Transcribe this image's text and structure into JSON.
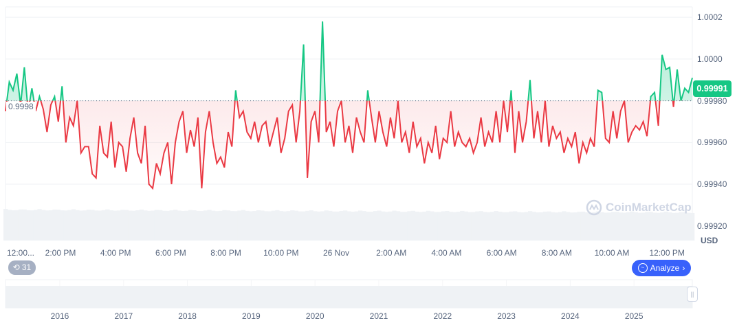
{
  "chart_data": {
    "type": "line",
    "currency_label": "USD",
    "y_ticks": [
      "1.0002",
      "1.0000",
      "0.99980",
      "0.99960",
      "0.99940",
      "0.99920"
    ],
    "y_tick_values": [
      1.0002,
      1.0,
      0.9998,
      0.9996,
      0.9994,
      0.9992
    ],
    "ylim": [
      0.99913,
      1.00025
    ],
    "baseline": 0.9998,
    "baseline_label": "0.9998",
    "current_price": "0.99991",
    "x_ticks": [
      "12:00...",
      "2:00 PM",
      "4:00 PM",
      "6:00 PM",
      "8:00 PM",
      "10:00 PM",
      "26 Nov",
      "2:00 AM",
      "4:00 AM",
      "6:00 AM",
      "8:00 AM",
      "10:00 AM",
      "12:00 PM"
    ],
    "navigator_years": [
      "2016",
      "2017",
      "2018",
      "2019",
      "2020",
      "2021",
      "2022",
      "2023",
      "2024",
      "2025"
    ],
    "grid": true,
    "colors": {
      "up": "#16c784",
      "down": "#ea3943",
      "accent": "#3861fb"
    },
    "values": [
      0.99975,
      0.99989,
      0.99985,
      0.99993,
      0.99978,
      0.99996,
      0.99975,
      0.99986,
      0.99975,
      0.99982,
      0.99976,
      0.99965,
      0.99978,
      0.99982,
      0.9997,
      0.99987,
      0.9996,
      0.99972,
      0.99968,
      0.9998,
      0.99955,
      0.99958,
      0.99958,
      0.99945,
      0.99943,
      0.99968,
      0.99955,
      0.99953,
      0.9997,
      0.99948,
      0.9996,
      0.99958,
      0.99946,
      0.99962,
      0.99972,
      0.99955,
      0.9995,
      0.99968,
      0.9994,
      0.99938,
      0.9995,
      0.99945,
      0.99955,
      0.9996,
      0.9994,
      0.9996,
      0.9997,
      0.99975,
      0.99955,
      0.99966,
      0.99958,
      0.99972,
      0.99938,
      0.99965,
      0.99975,
      0.9996,
      0.9995,
      0.99953,
      0.99948,
      0.99965,
      0.99958,
      0.99985,
      0.99972,
      0.99975,
      0.99965,
      0.99962,
      0.9997,
      0.9996,
      0.99968,
      0.9997,
      0.99958,
      0.99965,
      0.99972,
      0.99955,
      0.99962,
      0.99975,
      0.99978,
      0.9996,
      0.99975,
      1.00007,
      0.99943,
      0.9997,
      0.99975,
      0.9996,
      1.00018,
      0.99965,
      0.9997,
      0.99958,
      0.99975,
      0.9998,
      0.9996,
      0.99968,
      0.99955,
      0.99972,
      0.99965,
      0.9996,
      0.99985,
      0.99972,
      0.9996,
      0.99975,
      0.99965,
      0.99958,
      0.99972,
      0.99962,
      0.9998,
      0.9996,
      0.99965,
      0.99955,
      0.9997,
      0.99958,
      0.99962,
      0.9995,
      0.9996,
      0.99955,
      0.99968,
      0.99952,
      0.99962,
      0.9996,
      0.99975,
      0.99958,
      0.99965,
      0.9996,
      0.99958,
      0.99962,
      0.99955,
      0.9996,
      0.99972,
      0.99958,
      0.99965,
      0.9996,
      0.99975,
      0.9996,
      0.9998,
      0.99965,
      0.99985,
      0.99955,
      0.99975,
      0.9996,
      0.9997,
      0.9999,
      0.99962,
      0.99975,
      0.9996,
      0.9998,
      0.99958,
      0.99968,
      0.99962,
      0.99965,
      0.99955,
      0.99962,
      0.99958,
      0.99965,
      0.9995,
      0.9996,
      0.99955,
      0.99962,
      0.99958,
      0.99985,
      0.99984,
      0.99962,
      0.9996,
      0.99975,
      0.99962,
      0.99975,
      0.9998,
      0.9996,
      0.99965,
      0.99968,
      0.99966,
      0.9997,
      0.99963,
      0.99982,
      0.99984,
      0.99968,
      1.00002,
      0.99995,
      0.99996,
      0.99977,
      0.99995,
      0.9998,
      0.99986,
      0.99984,
      0.99991
    ]
  },
  "controls": {
    "history_count": "31",
    "analyze_label": "Analyze"
  },
  "watermark": "CoinMarketCap"
}
